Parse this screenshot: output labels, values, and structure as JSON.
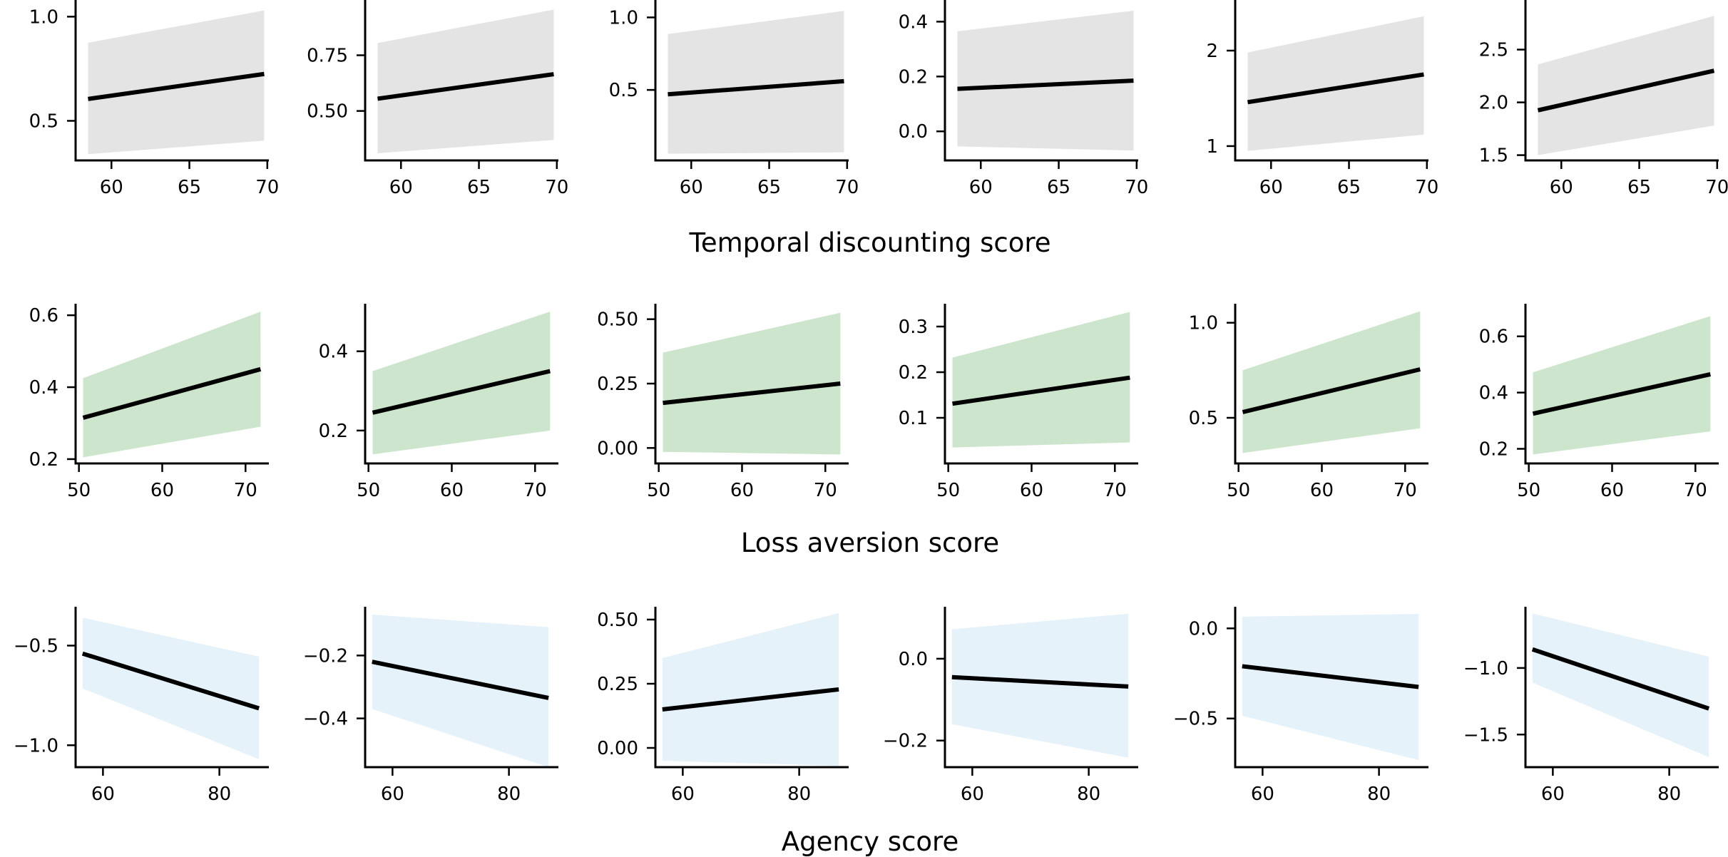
{
  "row_labels": [
    "Temporal discounting score",
    "Loss aversion score",
    "Agency score"
  ],
  "colors": {
    "row_band": [
      "#e4e4e4",
      "#cce5cc",
      "#e5f2f9"
    ],
    "line": "#000000"
  },
  "chart_data": [
    {
      "type": "line",
      "row": 0,
      "col": 0,
      "xlabel": "Temporal discounting score",
      "x": [
        58.5,
        69.8
      ],
      "y": [
        0.605,
        0.725
      ],
      "band_lower": [
        0.34,
        0.405
      ],
      "band_upper": [
        0.875,
        1.03
      ],
      "xlim": [
        57.7,
        70.1
      ],
      "ylim": [
        0.31,
        1.08
      ],
      "xticks": [
        60,
        65,
        70
      ],
      "yticks": [
        0.5,
        1.0
      ],
      "xtick_labels": [
        "60",
        "65",
        "70"
      ],
      "ytick_labels": [
        "0.5",
        "1.0"
      ]
    },
    {
      "type": "line",
      "row": 0,
      "col": 1,
      "xlabel": "Temporal discounting score",
      "x": [
        58.5,
        69.8
      ],
      "y": [
        0.555,
        0.665
      ],
      "band_lower": [
        0.31,
        0.37
      ],
      "band_upper": [
        0.805,
        0.955
      ],
      "xlim": [
        57.7,
        70.1
      ],
      "ylim": [
        0.278,
        0.998
      ],
      "xticks": [
        60,
        65,
        70
      ],
      "yticks": [
        0.5,
        0.75
      ],
      "xtick_labels": [
        "60",
        "65",
        "70"
      ],
      "ytick_labels": [
        "0.50",
        "0.75"
      ]
    },
    {
      "type": "line",
      "row": 0,
      "col": 2,
      "xlabel": "Temporal discounting score",
      "x": [
        58.5,
        69.8
      ],
      "y": [
        0.47,
        0.56
      ],
      "band_lower": [
        0.06,
        0.07
      ],
      "band_upper": [
        0.885,
        1.045
      ],
      "xlim": [
        57.7,
        70.1
      ],
      "ylim": [
        0.014,
        1.12
      ],
      "xticks": [
        60,
        65,
        70
      ],
      "yticks": [
        0.5,
        1.0
      ],
      "xtick_labels": [
        "60",
        "65",
        "70"
      ],
      "ytick_labels": [
        "0.5",
        "1.0"
      ]
    },
    {
      "type": "line",
      "row": 0,
      "col": 3,
      "xlabel": "Temporal discounting score",
      "x": [
        58.5,
        69.8
      ],
      "y": [
        0.155,
        0.185
      ],
      "band_lower": [
        -0.055,
        -0.07
      ],
      "band_upper": [
        0.365,
        0.44
      ],
      "xlim": [
        57.7,
        70.1
      ],
      "ylim": [
        -0.106,
        0.479
      ],
      "xticks": [
        60,
        65,
        70
      ],
      "yticks": [
        0.0,
        0.2,
        0.4
      ],
      "xtick_labels": [
        "60",
        "65",
        "70"
      ],
      "ytick_labels": [
        "0.0",
        "0.2",
        "0.4"
      ]
    },
    {
      "type": "line",
      "row": 0,
      "col": 4,
      "xlabel": "Temporal discounting score",
      "x": [
        58.5,
        69.8
      ],
      "y": [
        1.46,
        1.75
      ],
      "band_lower": [
        0.95,
        1.12
      ],
      "band_upper": [
        1.98,
        2.36
      ],
      "xlim": [
        57.7,
        70.1
      ],
      "ylim": [
        0.85,
        2.53
      ],
      "xticks": [
        60,
        65,
        70
      ],
      "yticks": [
        1,
        2
      ],
      "xtick_labels": [
        "60",
        "65",
        "70"
      ],
      "ytick_labels": [
        "1",
        "2"
      ]
    },
    {
      "type": "line",
      "row": 0,
      "col": 5,
      "xlabel": "Temporal discounting score",
      "x": [
        58.5,
        69.8
      ],
      "y": [
        1.925,
        2.3
      ],
      "band_lower": [
        1.5,
        1.78
      ],
      "band_upper": [
        2.36,
        2.82
      ],
      "xlim": [
        57.7,
        70.1
      ],
      "ylim": [
        1.45,
        2.97
      ],
      "xticks": [
        60,
        65,
        70
      ],
      "yticks": [
        1.5,
        2.0,
        2.5
      ],
      "xtick_labels": [
        "60",
        "65",
        "70"
      ],
      "ytick_labels": [
        "1.5",
        "2.0",
        "2.5"
      ]
    },
    {
      "type": "line",
      "row": 1,
      "col": 0,
      "xlabel": "Loss aversion score",
      "x": [
        50.5,
        71.8
      ],
      "y": [
        0.315,
        0.45
      ],
      "band_lower": [
        0.205,
        0.29
      ],
      "band_upper": [
        0.425,
        0.61
      ],
      "xlim": [
        49.6,
        72.8
      ],
      "ylim": [
        0.188,
        0.632
      ],
      "xticks": [
        50,
        60,
        70
      ],
      "yticks": [
        0.2,
        0.4,
        0.6
      ],
      "xtick_labels": [
        "50",
        "60",
        "70"
      ],
      "ytick_labels": [
        "0.2",
        "0.4",
        "0.6"
      ]
    },
    {
      "type": "line",
      "row": 1,
      "col": 1,
      "xlabel": "Loss aversion score",
      "x": [
        50.5,
        71.8
      ],
      "y": [
        0.245,
        0.35
      ],
      "band_lower": [
        0.14,
        0.2
      ],
      "band_upper": [
        0.35,
        0.5
      ],
      "xlim": [
        49.6,
        72.8
      ],
      "ylim": [
        0.117,
        0.52
      ],
      "xticks": [
        50,
        60,
        70
      ],
      "yticks": [
        0.2,
        0.4
      ],
      "xtick_labels": [
        "50",
        "60",
        "70"
      ],
      "ytick_labels": [
        "0.2",
        "0.4"
      ]
    },
    {
      "type": "line",
      "row": 1,
      "col": 2,
      "xlabel": "Loss aversion score",
      "x": [
        50.5,
        71.8
      ],
      "y": [
        0.175,
        0.25
      ],
      "band_lower": [
        -0.015,
        -0.025
      ],
      "band_upper": [
        0.37,
        0.525
      ],
      "xlim": [
        49.6,
        72.8
      ],
      "ylim": [
        -0.06,
        0.56
      ],
      "xticks": [
        50,
        60,
        70
      ],
      "yticks": [
        0.0,
        0.25,
        0.5
      ],
      "xtick_labels": [
        "50",
        "60",
        "70"
      ],
      "ytick_labels": [
        "0.00",
        "0.25",
        "0.50"
      ]
    },
    {
      "type": "line",
      "row": 1,
      "col": 3,
      "xlabel": "Loss aversion score",
      "x": [
        50.5,
        71.8
      ],
      "y": [
        0.131,
        0.188
      ],
      "band_lower": [
        0.035,
        0.046
      ],
      "band_upper": [
        0.232,
        0.332
      ],
      "xlim": [
        49.6,
        72.8
      ],
      "ylim": [
        0.0,
        0.35
      ],
      "xticks": [
        50,
        60,
        70
      ],
      "yticks": [
        0.1,
        0.2,
        0.3
      ],
      "xtick_labels": [
        "50",
        "60",
        "70"
      ],
      "ytick_labels": [
        "0.1",
        "0.2",
        "0.3"
      ]
    },
    {
      "type": "line",
      "row": 1,
      "col": 4,
      "xlabel": "Loss aversion score",
      "x": [
        50.5,
        71.8
      ],
      "y": [
        0.53,
        0.755
      ],
      "band_lower": [
        0.315,
        0.445
      ],
      "band_upper": [
        0.75,
        1.06
      ],
      "xlim": [
        49.6,
        72.8
      ],
      "ylim": [
        0.26,
        1.1
      ],
      "xticks": [
        50,
        60,
        70
      ],
      "yticks": [
        0.5,
        1.0
      ],
      "xtick_labels": [
        "50",
        "60",
        "70"
      ],
      "ytick_labels": [
        "0.5",
        "1.0"
      ]
    },
    {
      "type": "line",
      "row": 1,
      "col": 5,
      "xlabel": "Loss aversion score",
      "x": [
        50.5,
        71.8
      ],
      "y": [
        0.325,
        0.465
      ],
      "band_lower": [
        0.18,
        0.262
      ],
      "band_upper": [
        0.472,
        0.672
      ],
      "xlim": [
        49.6,
        72.8
      ],
      "ylim": [
        0.148,
        0.716
      ],
      "xticks": [
        50,
        60,
        70
      ],
      "yticks": [
        0.2,
        0.4,
        0.6
      ],
      "xtick_labels": [
        "50",
        "60",
        "70"
      ],
      "ytick_labels": [
        "0.2",
        "0.4",
        "0.6"
      ]
    },
    {
      "type": "line",
      "row": 2,
      "col": 0,
      "xlabel": "Agency score",
      "x": [
        56.5,
        86.8
      ],
      "y": [
        -0.54,
        -0.815
      ],
      "band_lower": [
        -0.715,
        -1.07
      ],
      "band_upper": [
        -0.36,
        -0.555
      ],
      "xlim": [
        55.3,
        88.5
      ],
      "ylim": [
        -1.11,
        -0.305
      ],
      "xticks": [
        60,
        80
      ],
      "yticks": [
        -1.0,
        -0.5
      ],
      "xtick_labels": [
        "60",
        "80"
      ],
      "ytick_labels": [
        "−1.0",
        "−0.5"
      ]
    },
    {
      "type": "line",
      "row": 2,
      "col": 1,
      "xlabel": "Agency score",
      "x": [
        56.5,
        86.8
      ],
      "y": [
        -0.22,
        -0.335
      ],
      "band_lower": [
        -0.37,
        -0.555
      ],
      "band_upper": [
        -0.07,
        -0.11
      ],
      "xlim": [
        55.3,
        88.5
      ],
      "ylim": [
        -0.555,
        -0.045
      ],
      "xticks": [
        60,
        80
      ],
      "yticks": [
        -0.4,
        -0.2
      ],
      "xtick_labels": [
        "60",
        "80"
      ],
      "ytick_labels": [
        "−0.4",
        "−0.2"
      ]
    },
    {
      "type": "line",
      "row": 2,
      "col": 2,
      "xlabel": "Agency score",
      "x": [
        56.5,
        86.8
      ],
      "y": [
        0.15,
        0.228
      ],
      "band_lower": [
        -0.05,
        -0.07
      ],
      "band_upper": [
        0.35,
        0.525
      ],
      "xlim": [
        55.3,
        88.5
      ],
      "ylim": [
        -0.075,
        0.55
      ],
      "xticks": [
        60,
        80
      ],
      "yticks": [
        0.0,
        0.25,
        0.5
      ],
      "xtick_labels": [
        "60",
        "80"
      ],
      "ytick_labels": [
        "0.00",
        "0.25",
        "0.50"
      ]
    },
    {
      "type": "line",
      "row": 2,
      "col": 3,
      "xlabel": "Agency score",
      "x": [
        56.5,
        86.8
      ],
      "y": [
        -0.045,
        -0.068
      ],
      "band_lower": [
        -0.16,
        -0.242
      ],
      "band_upper": [
        0.072,
        0.11
      ],
      "xlim": [
        55.3,
        88.5
      ],
      "ylim": [
        -0.265,
        0.127
      ],
      "xticks": [
        60,
        80
      ],
      "yticks": [
        -0.2,
        0.0
      ],
      "xtick_labels": [
        "60",
        "80"
      ],
      "ytick_labels": [
        "−0.2",
        "0.0"
      ]
    },
    {
      "type": "line",
      "row": 2,
      "col": 4,
      "xlabel": "Agency score",
      "x": [
        56.5,
        86.8
      ],
      "y": [
        -0.21,
        -0.325
      ],
      "band_lower": [
        -0.485,
        -0.73
      ],
      "band_upper": [
        0.065,
        0.08
      ],
      "xlim": [
        55.3,
        88.5
      ],
      "ylim": [
        -0.77,
        0.12
      ],
      "xticks": [
        60,
        80
      ],
      "yticks": [
        -0.5,
        0.0
      ],
      "xtick_labels": [
        "60",
        "80"
      ],
      "ytick_labels": [
        "−0.5",
        "0.0"
      ]
    },
    {
      "type": "line",
      "row": 2,
      "col": 5,
      "xlabel": "Agency score",
      "x": [
        56.5,
        86.8
      ],
      "y": [
        -0.86,
        -1.305
      ],
      "band_lower": [
        -1.11,
        -1.67
      ],
      "band_upper": [
        -0.59,
        -0.915
      ],
      "xlim": [
        55.3,
        88.5
      ],
      "ylim": [
        -1.745,
        -0.54
      ],
      "xticks": [
        60,
        80
      ],
      "yticks": [
        -1.5,
        -1.0
      ],
      "xtick_labels": [
        "60",
        "80"
      ],
      "ytick_labels": [
        "−1.5",
        "−1.0"
      ]
    }
  ]
}
